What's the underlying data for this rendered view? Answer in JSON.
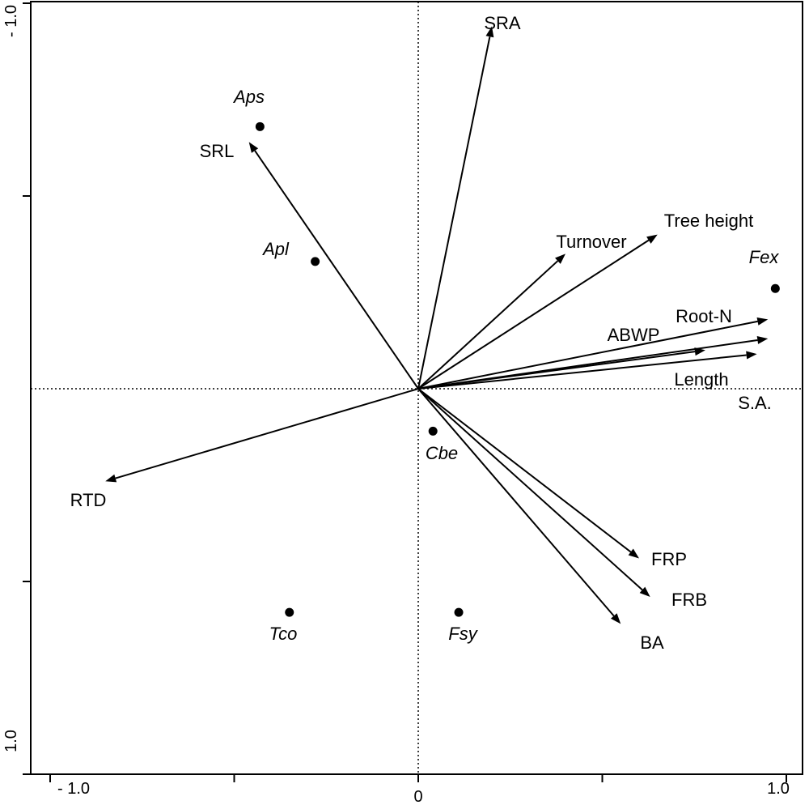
{
  "chart_data": {
    "type": "scatter",
    "subtype": "pca-biplot",
    "title": "",
    "xlabel": "",
    "ylabel": "",
    "xlim": [
      -1.0,
      1.0
    ],
    "ylim": [
      -1.0,
      1.0
    ],
    "y_inverted": true,
    "grid": false,
    "legend": "none",
    "reference_lines": [
      {
        "axis": "x",
        "value": 0,
        "style": "dotted"
      },
      {
        "axis": "y",
        "value": 0,
        "style": "dotted"
      }
    ],
    "x_ticks": [
      -1.0,
      -0.5,
      0,
      0.5,
      1.0
    ],
    "x_tick_labels": [
      {
        "value": -1.0,
        "label": "- 1.0"
      },
      {
        "value": 0,
        "label": "0"
      },
      {
        "value": 1.0,
        "label": "1.0"
      }
    ],
    "y_ticks": [
      -1.0,
      -0.5,
      0.5,
      1.0
    ],
    "y_tick_labels": [
      {
        "value": -1.0,
        "label": "- 1.0"
      },
      {
        "value": 1.0,
        "label": "1.0"
      }
    ],
    "vectors": [
      {
        "label": "SRA",
        "x": 0.2,
        "y": -0.94
      },
      {
        "label": "SRL",
        "x": -0.46,
        "y": -0.64
      },
      {
        "label": "Turnover",
        "x": 0.4,
        "y": -0.35
      },
      {
        "label": "Tree height",
        "x": 0.65,
        "y": -0.4
      },
      {
        "label": "Root-N",
        "x": 0.95,
        "y": -0.18
      },
      {
        "label": "ABWP",
        "x": 0.78,
        "y": -0.1
      },
      {
        "label": "Length",
        "x": 0.95,
        "y": -0.13
      },
      {
        "label": "S.A.",
        "x": 0.92,
        "y": -0.09
      },
      {
        "label": "RTD",
        "x": -0.85,
        "y": 0.24
      },
      {
        "label": "FRP",
        "x": 0.6,
        "y": 0.44
      },
      {
        "label": "FRB",
        "x": 0.63,
        "y": 0.54
      },
      {
        "label": "BA",
        "x": 0.55,
        "y": 0.61
      }
    ],
    "species": [
      {
        "label": "Aps",
        "x": -0.43,
        "y": -0.68
      },
      {
        "label": "Apl",
        "x": -0.28,
        "y": -0.33
      },
      {
        "label": "Fex",
        "x": 0.97,
        "y": -0.26
      },
      {
        "label": "Cbe",
        "x": 0.04,
        "y": 0.11
      },
      {
        "label": "Tco",
        "x": -0.35,
        "y": 0.58
      },
      {
        "label": "Fsy",
        "x": 0.11,
        "y": 0.58
      }
    ]
  }
}
